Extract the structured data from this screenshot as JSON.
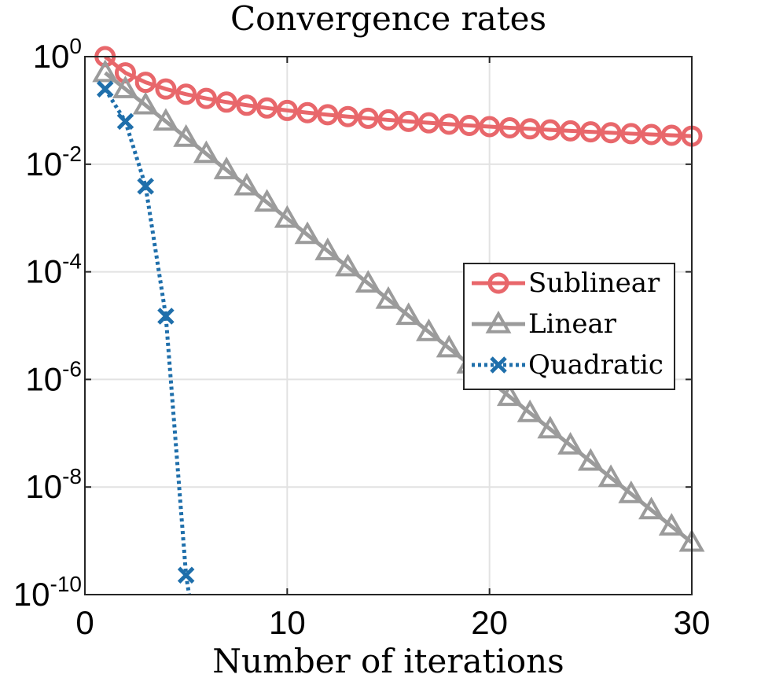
{
  "chart_data": {
    "type": "line",
    "title": "Convergence rates",
    "xlabel": "Number of iterations",
    "ylabel": "",
    "xlim": [
      0,
      30
    ],
    "ylim": [
      1e-10,
      1
    ],
    "yscale": "log",
    "grid": true,
    "legend_position": "right-middle",
    "x_ticks": [
      0,
      10,
      20,
      30
    ],
    "x_tick_labels": [
      "0",
      "10",
      "20",
      "30"
    ],
    "y_ticks": [
      {
        "value": 1,
        "base": "10",
        "exp": "0"
      },
      {
        "value": 0.01,
        "base": "10",
        "exp": "-2"
      },
      {
        "value": 0.0001,
        "base": "10",
        "exp": "-4"
      },
      {
        "value": 1e-06,
        "base": "10",
        "exp": "-6"
      },
      {
        "value": 1e-08,
        "base": "10",
        "exp": "-8"
      },
      {
        "value": 1e-10,
        "base": "10",
        "exp": "-10"
      }
    ],
    "series": [
      {
        "name": "Sublinear",
        "color": "#e8676b",
        "marker": "circle",
        "line_style": "solid",
        "x": [
          1,
          2,
          3,
          4,
          5,
          6,
          7,
          8,
          9,
          10,
          11,
          12,
          13,
          14,
          15,
          16,
          17,
          18,
          19,
          20,
          21,
          22,
          23,
          24,
          25,
          26,
          27,
          28,
          29,
          30
        ],
        "y": [
          1.0,
          0.5,
          0.333,
          0.25,
          0.2,
          0.167,
          0.143,
          0.125,
          0.111,
          0.1,
          0.0909,
          0.0833,
          0.0769,
          0.0714,
          0.0667,
          0.0625,
          0.0588,
          0.0556,
          0.0526,
          0.05,
          0.0476,
          0.0455,
          0.0435,
          0.0417,
          0.04,
          0.0385,
          0.037,
          0.0357,
          0.0345,
          0.0333
        ]
      },
      {
        "name": "Linear",
        "color": "#9b9b9b",
        "marker": "triangle",
        "line_style": "solid",
        "x": [
          1,
          2,
          3,
          4,
          5,
          6,
          7,
          8,
          9,
          10,
          11,
          12,
          13,
          14,
          15,
          16,
          17,
          18,
          19,
          20,
          21,
          22,
          23,
          24,
          25,
          26,
          27,
          28,
          29,
          30
        ],
        "y": [
          0.5,
          0.25,
          0.125,
          0.0625,
          0.03125,
          0.015625,
          0.0078125,
          0.00390625,
          0.001953,
          0.0009766,
          0.0004883,
          0.0002441,
          0.0001221,
          6.1e-05,
          3.05e-05,
          1.53e-05,
          7.63e-06,
          3.81e-06,
          1.91e-06,
          9.54e-07,
          4.77e-07,
          2.38e-07,
          1.19e-07,
          5.96e-08,
          2.98e-08,
          1.49e-08,
          7.45e-09,
          3.73e-09,
          1.86e-09,
          9.31e-10
        ]
      },
      {
        "name": "Quadratic",
        "color": "#1f6fab",
        "marker": "x",
        "line_style": "dotted",
        "x": [
          1,
          2,
          3,
          4,
          5,
          5.15
        ],
        "y": [
          0.25,
          0.0625,
          0.0039,
          1.5e-05,
          2.3e-10,
          1e-10
        ],
        "marker_count": 5
      }
    ]
  }
}
